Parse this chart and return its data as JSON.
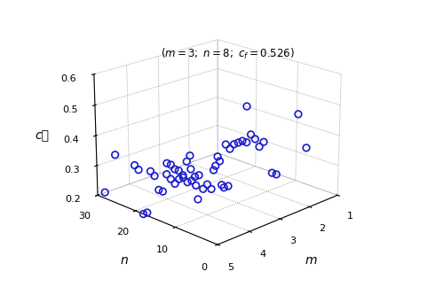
{
  "annotation": "(m = 3; n = 8; c₟ = 0.526)",
  "xlabel": "m",
  "ylabel": "n",
  "zlabel": "c₟",
  "m_range": [
    1,
    5
  ],
  "n_range": [
    0,
    30
  ],
  "cf_range": [
    0.2,
    0.6
  ],
  "m_ticks": [
    1,
    2,
    3,
    4,
    5
  ],
  "n_ticks": [
    0,
    10,
    20,
    30
  ],
  "cf_ticks": [
    0.2,
    0.3,
    0.4,
    0.5,
    0.6
  ],
  "marker_color": "#1a1acd",
  "marker_size": 30,
  "marker_lw": 1.2,
  "elev": 20,
  "azim": -135,
  "scatter_m": [
    2,
    2,
    3,
    3,
    3,
    3,
    3,
    3,
    3,
    3,
    3,
    3,
    3,
    3,
    3,
    3,
    3,
    3,
    3,
    3,
    4,
    4,
    4,
    4,
    4,
    4,
    4,
    4,
    4,
    4,
    4,
    4,
    4,
    4,
    4,
    4,
    5,
    5,
    5,
    5,
    5,
    5,
    5,
    5,
    5,
    5,
    5,
    5,
    5,
    5,
    5,
    5,
    5,
    5
  ],
  "scatter_n": [
    1,
    3,
    1,
    2,
    4,
    5,
    6,
    7,
    8,
    8,
    9,
    10,
    11,
    12,
    13,
    14,
    15,
    16,
    20,
    22,
    5,
    6,
    7,
    8,
    9,
    10,
    11,
    12,
    13,
    14,
    15,
    16,
    17,
    18,
    19,
    20,
    5,
    6,
    7,
    8,
    9,
    10,
    11,
    12,
    13,
    14,
    15,
    16,
    17,
    18,
    19,
    20,
    25,
    28
  ],
  "scatter_cf": [
    0.39,
    0.49,
    0.34,
    0.34,
    0.43,
    0.41,
    0.43,
    0.44,
    0.526,
    0.41,
    0.41,
    0.4,
    0.39,
    0.37,
    0.38,
    0.24,
    0.33,
    0.28,
    0.16,
    0.3,
    0.32,
    0.31,
    0.39,
    0.37,
    0.29,
    0.3,
    0.28,
    0.32,
    0.31,
    0.33,
    0.35,
    0.3,
    0.31,
    0.31,
    0.32,
    0.32,
    0.36,
    0.37,
    0.36,
    0.37,
    0.36,
    0.34,
    0.35,
    0.36,
    0.3,
    0.3,
    0.34,
    0.35,
    0.21,
    0.2,
    0.34,
    0.35,
    0.36,
    0.22
  ]
}
